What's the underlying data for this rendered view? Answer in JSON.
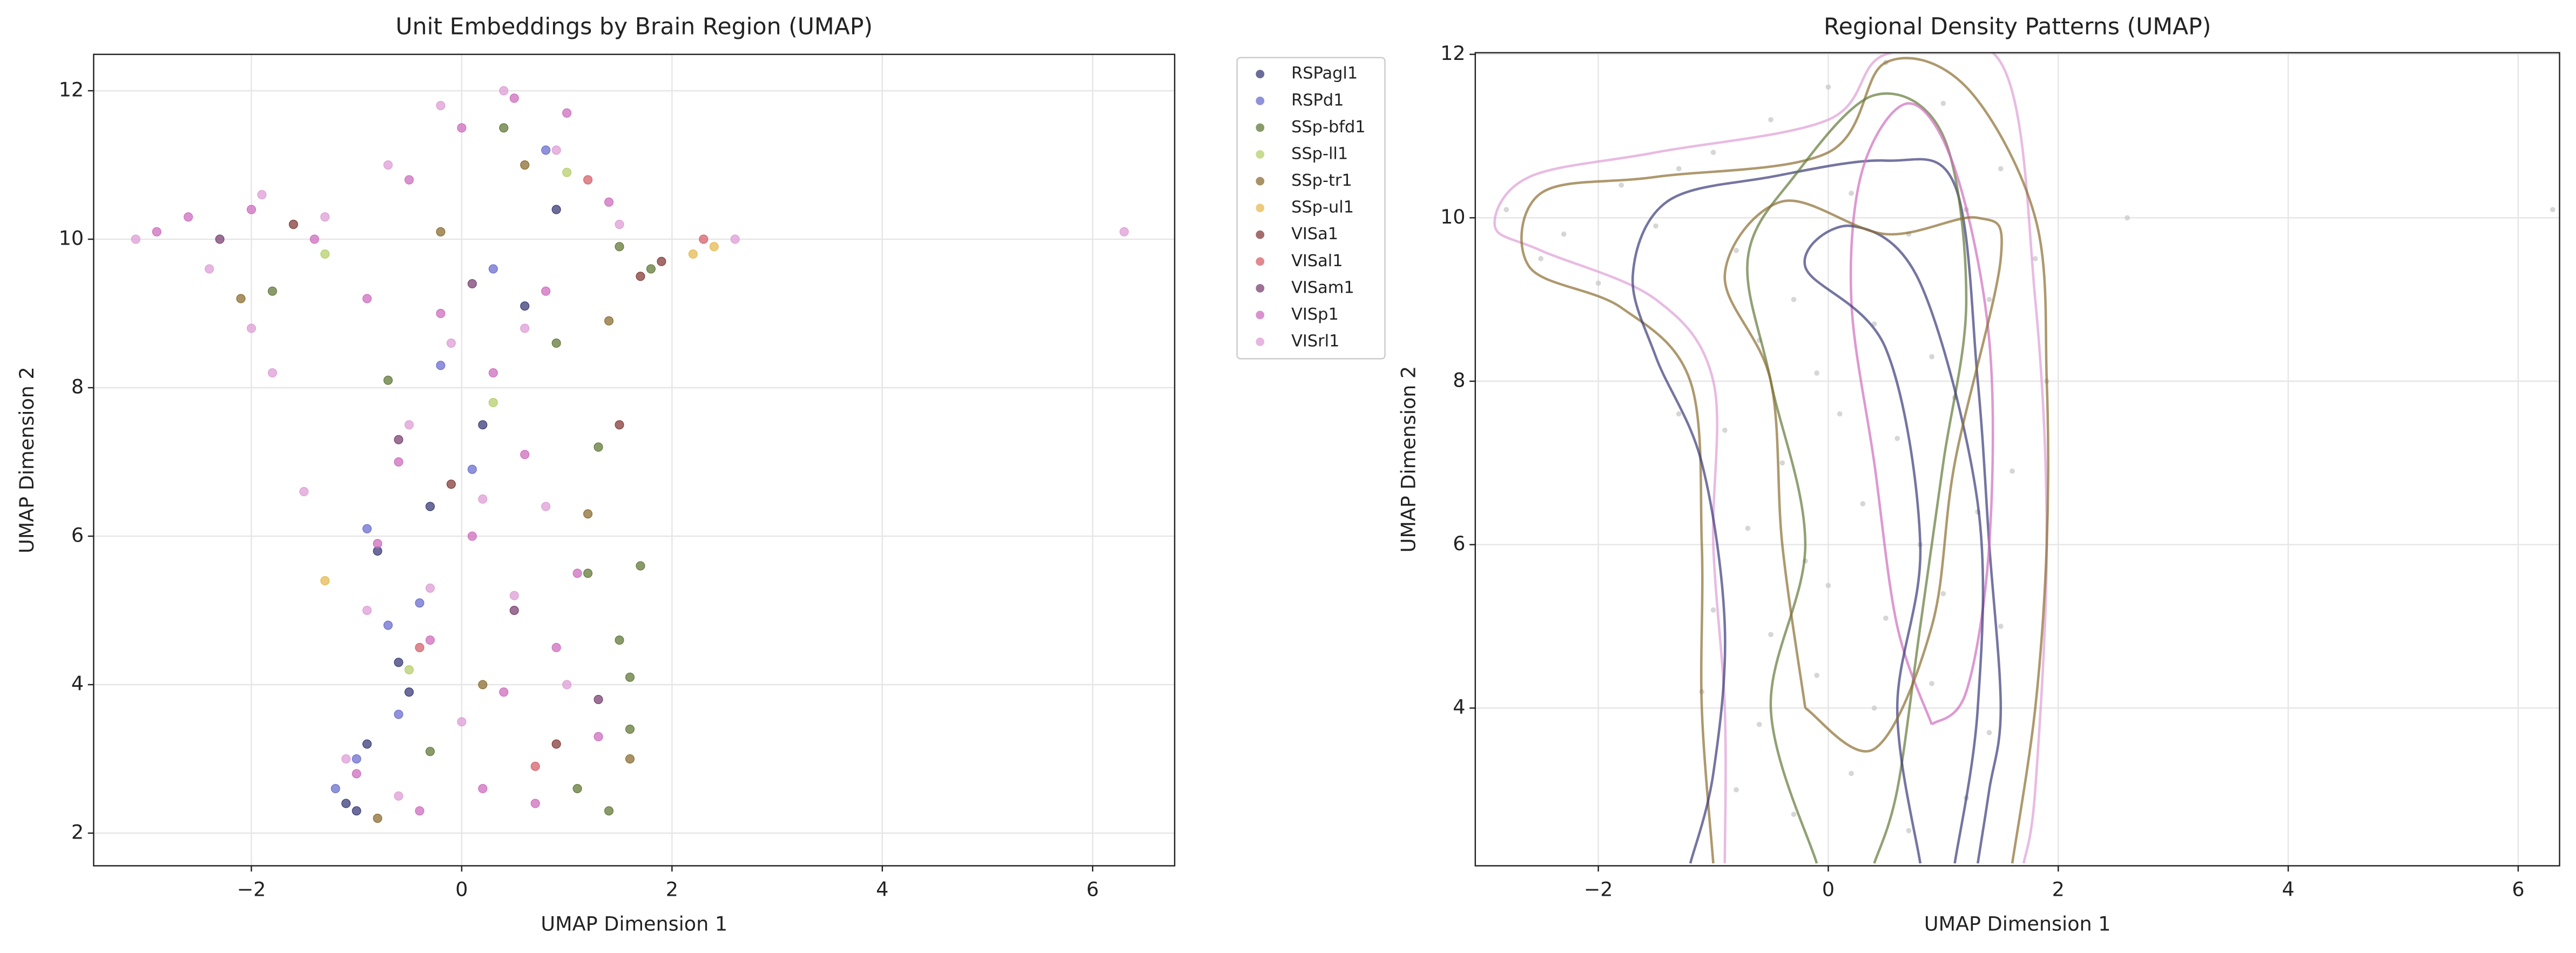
{
  "chart_data": [
    {
      "type": "scatter",
      "title": "Unit Embeddings by Brain Region (UMAP)",
      "x_label": "UMAP Dimension 1",
      "y_label": "UMAP Dimension 2",
      "xlim": [
        -3.5,
        6.78
      ],
      "ylim": [
        1.56,
        12.49
      ],
      "xticks": [
        {
          "value": -2,
          "label": "−2"
        },
        0,
        2,
        4,
        6
      ],
      "yticks": [
        2,
        4,
        6,
        8,
        10,
        12
      ],
      "grid": true,
      "legend": "outside",
      "series": [
        {
          "name": "RSPagl1",
          "color": "#3b3b7a",
          "x": [
            -1.1,
            -0.9,
            -0.6,
            -0.8,
            -0.3,
            0.2,
            0.6,
            -1.0,
            -0.5,
            0.9
          ],
          "values": [
            2.4,
            3.2,
            4.3,
            5.8,
            6.4,
            7.5,
            9.1,
            2.3,
            3.9,
            10.4
          ]
        },
        {
          "name": "RSPd1",
          "color": "#6b6ecf",
          "x": [
            -1.0,
            -0.7,
            -0.9,
            -0.4,
            -0.2,
            0.3,
            0.8,
            -1.2,
            -0.6,
            0.1
          ],
          "values": [
            3.0,
            4.8,
            6.1,
            5.1,
            8.3,
            9.6,
            11.2,
            2.6,
            3.6,
            6.9
          ]
        },
        {
          "name": "SSp-bfd1",
          "color": "#637939",
          "x": [
            1.4,
            1.6,
            1.5,
            1.2,
            1.7,
            1.3,
            0.9,
            1.5,
            -1.8,
            -0.7,
            0.4,
            1.8,
            1.1,
            -0.3,
            1.6
          ],
          "values": [
            2.3,
            3.4,
            4.6,
            5.5,
            5.6,
            7.2,
            8.6,
            9.9,
            9.3,
            8.1,
            11.5,
            9.6,
            2.6,
            3.1,
            4.1
          ]
        },
        {
          "name": "SSp-ll1",
          "color": "#b5cf6b",
          "x": [
            0.3,
            -0.5,
            1.0,
            -1.3
          ],
          "values": [
            7.8,
            4.2,
            10.9,
            9.8
          ]
        },
        {
          "name": "SSp-tr1",
          "color": "#8c6d31",
          "x": [
            -0.8,
            0.2,
            1.2,
            -2.1,
            1.4,
            0.6,
            -0.2,
            1.6
          ],
          "values": [
            2.2,
            4.0,
            6.3,
            9.2,
            8.9,
            11.0,
            10.1,
            3.0
          ]
        },
        {
          "name": "SSp-ul1",
          "color": "#e7ba52",
          "x": [
            -1.3,
            2.2,
            2.4
          ],
          "values": [
            5.4,
            9.8,
            9.9
          ]
        },
        {
          "name": "VISa1",
          "color": "#843c39",
          "x": [
            1.7,
            1.9,
            -0.1,
            0.9,
            -1.6,
            1.5
          ],
          "values": [
            9.5,
            9.7,
            6.7,
            3.2,
            10.2,
            7.5
          ]
        },
        {
          "name": "VISal1",
          "color": "#d6616b",
          "x": [
            2.3,
            1.2,
            -0.4,
            0.7
          ],
          "values": [
            10.0,
            10.8,
            4.5,
            2.9
          ]
        },
        {
          "name": "VISam1",
          "color": "#7b4173",
          "x": [
            -0.6,
            0.5,
            1.3,
            -2.3,
            0.1
          ],
          "values": [
            7.3,
            5.0,
            3.8,
            10.0,
            9.4
          ]
        },
        {
          "name": "VISp1",
          "color": "#ce6dbd",
          "x": [
            -2.6,
            -2.0,
            -1.4,
            -0.9,
            -0.5,
            0,
            0.5,
            1.0,
            1.4,
            -0.2,
            0.3,
            0.8,
            -0.6,
            0.1,
            0.6,
            1.1,
            -0.8,
            -0.3,
            0.4,
            0.9,
            1.3,
            -1.0,
            -0.4,
            0.2,
            0.7,
            -2.9
          ],
          "values": [
            10.3,
            10.4,
            10.0,
            9.2,
            10.8,
            11.5,
            11.9,
            11.7,
            10.5,
            9.0,
            8.2,
            9.3,
            7.0,
            6.0,
            7.1,
            5.5,
            5.9,
            4.6,
            3.9,
            4.5,
            3.3,
            2.8,
            2.3,
            2.6,
            2.4,
            10.1
          ]
        },
        {
          "name": "VISrl1",
          "color": "#de9ed6",
          "x": [
            -3.1,
            -2.4,
            -1.9,
            -1.3,
            -0.7,
            -0.2,
            0.4,
            0.9,
            1.5,
            -0.1,
            0.6,
            -0.5,
            0.2,
            0.8,
            -0.9,
            -0.3,
            0.5,
            1.0,
            -1.1,
            -0.6,
            0.0,
            -2.0,
            -1.8,
            6.3,
            2.6,
            -1.5
          ],
          "values": [
            10.0,
            9.6,
            10.6,
            10.3,
            11.0,
            11.8,
            12.0,
            11.2,
            10.2,
            8.6,
            8.8,
            7.5,
            6.5,
            6.4,
            5.0,
            5.3,
            5.2,
            4.0,
            3.0,
            2.5,
            3.5,
            8.8,
            8.2,
            10.1,
            10.0,
            6.6
          ]
        }
      ]
    },
    {
      "type": "contour",
      "title": "Regional Density Patterns (UMAP)",
      "x_label": "UMAP Dimension 1",
      "y_label": "UMAP Dimension 2",
      "xlim": [
        -3.07,
        6.36
      ],
      "ylim": [
        2.07,
        12.02
      ],
      "xticks": [
        {
          "value": -2,
          "label": "−2"
        },
        0,
        2,
        4,
        6
      ],
      "yticks": [
        4,
        6,
        8,
        10,
        12
      ],
      "grid": true,
      "points": {
        "color": "#cccccc",
        "x": [
          -2.8,
          -2.3,
          -1.8,
          -1.3,
          -2.5,
          -2.0,
          -1.5,
          -1.0,
          -0.5,
          0,
          0.5,
          1.0,
          1.5,
          1.8,
          2.6,
          -0.8,
          -0.3,
          0.2,
          0.7,
          1.2,
          -0.6,
          -0.1,
          0.4,
          0.9,
          1.4,
          -0.9,
          -0.4,
          0.1,
          0.6,
          1.1,
          1.6,
          -0.7,
          -0.2,
          0.3,
          0.8,
          1.3,
          -1.0,
          -0.5,
          0.0,
          0.5,
          1.0,
          1.5,
          -1.1,
          -0.6,
          -0.1,
          0.4,
          0.9,
          1.4,
          -0.8,
          -0.3,
          0.2,
          0.7,
          1.2,
          6.3,
          -1.3,
          1.9
        ],
        "values": [
          10.1,
          9.8,
          10.4,
          10.6,
          9.5,
          9.2,
          9.9,
          10.8,
          11.2,
          11.6,
          11.9,
          11.4,
          10.6,
          9.5,
          10.0,
          9.6,
          9.0,
          10.3,
          9.8,
          10.1,
          8.5,
          8.1,
          8.7,
          8.3,
          9.0,
          7.4,
          7.0,
          7.6,
          7.3,
          7.8,
          6.9,
          6.2,
          5.8,
          6.5,
          6.0,
          6.4,
          5.2,
          4.9,
          5.5,
          5.1,
          5.4,
          5.0,
          4.2,
          3.8,
          4.4,
          4.0,
          4.3,
          3.7,
          3.0,
          2.7,
          3.2,
          2.5,
          2.9,
          10.1,
          7.6,
          8.0
        ]
      },
      "contours": [
        {
          "color": "#de9ed6",
          "x": [
            -0.9,
            -0.9,
            -1.0,
            -1.0,
            -1.5,
            -2.5,
            -2.9,
            -2.6,
            -1.5,
            0,
            0.5,
            1.5,
            1.8,
            1.9,
            1.8,
            1.7
          ],
          "values": [
            2.1,
            4,
            6,
            8,
            9.0,
            9.6,
            9.9,
            10.5,
            10.8,
            11.2,
            12.0,
            11.9,
            9,
            6,
            3,
            2.1
          ]
        },
        {
          "color": "#8c6d31",
          "x": [
            -1.0,
            -1.1,
            -1.1,
            -1.2,
            -1.8,
            -2.6,
            -2.5,
            -1.5,
            0,
            0.5,
            1.2,
            1.8,
            1.9,
            1.9,
            1.8,
            1.6
          ],
          "values": [
            2.1,
            4,
            6,
            8,
            8.9,
            9.4,
            10.3,
            10.5,
            10.8,
            11.9,
            11.6,
            10,
            8,
            6,
            4,
            2.1
          ]
        },
        {
          "color": "#3b3b7a",
          "x": [
            -1.2,
            -1.0,
            -0.9,
            -1.1,
            -1.5,
            -1.7,
            -1.4,
            -0.5,
            0.5,
            1.1,
            1.3,
            1.4,
            1.5,
            1.4,
            1.3
          ],
          "values": [
            2.1,
            3.2,
            5,
            7,
            8.3,
            9.3,
            10.2,
            10.5,
            10.7,
            10.4,
            8,
            6,
            4,
            3,
            2.1
          ]
        },
        {
          "color": "#637939",
          "x": [
            -0.1,
            -0.5,
            -0.2,
            -0.5,
            -0.7,
            -0.3,
            0.4,
            1.0,
            1.2,
            1.0,
            0.8,
            0.6,
            0.4
          ],
          "values": [
            2.1,
            4,
            6,
            8,
            9.5,
            10.5,
            11.5,
            11,
            9,
            7,
            5,
            3,
            2.1
          ]
        },
        {
          "color": "#ce6dbd",
          "x": [
            0.9,
            0.6,
            0.4,
            0.2,
            0.3,
            0.7,
            1.1,
            1.4,
            1.4,
            1.2,
            0.9
          ],
          "values": [
            3.8,
            5,
            7,
            9,
            10.6,
            11.4,
            10.6,
            8.5,
            6,
            4.2,
            3.8
          ]
        },
        {
          "color": "#3b3b7a",
          "x": [
            0.8,
            0.6,
            0.8,
            0.5,
            -0.2,
            0.2,
            0.8,
            1.3,
            1.3,
            1.1
          ],
          "values": [
            2.1,
            4,
            6,
            8.4,
            9.4,
            9.9,
            9.2,
            6.5,
            4,
            2.1
          ]
        },
        {
          "color": "#8c6d31",
          "x": [
            -0.2,
            -0.4,
            -0.5,
            -0.9,
            -0.4,
            0.5,
            1.3,
            1.5,
            1.1,
            0.9,
            0.4,
            -0.2
          ],
          "values": [
            4,
            6,
            8,
            9.3,
            10.2,
            9.8,
            10,
            9.5,
            7,
            5,
            3.5,
            4
          ]
        }
      ]
    }
  ]
}
